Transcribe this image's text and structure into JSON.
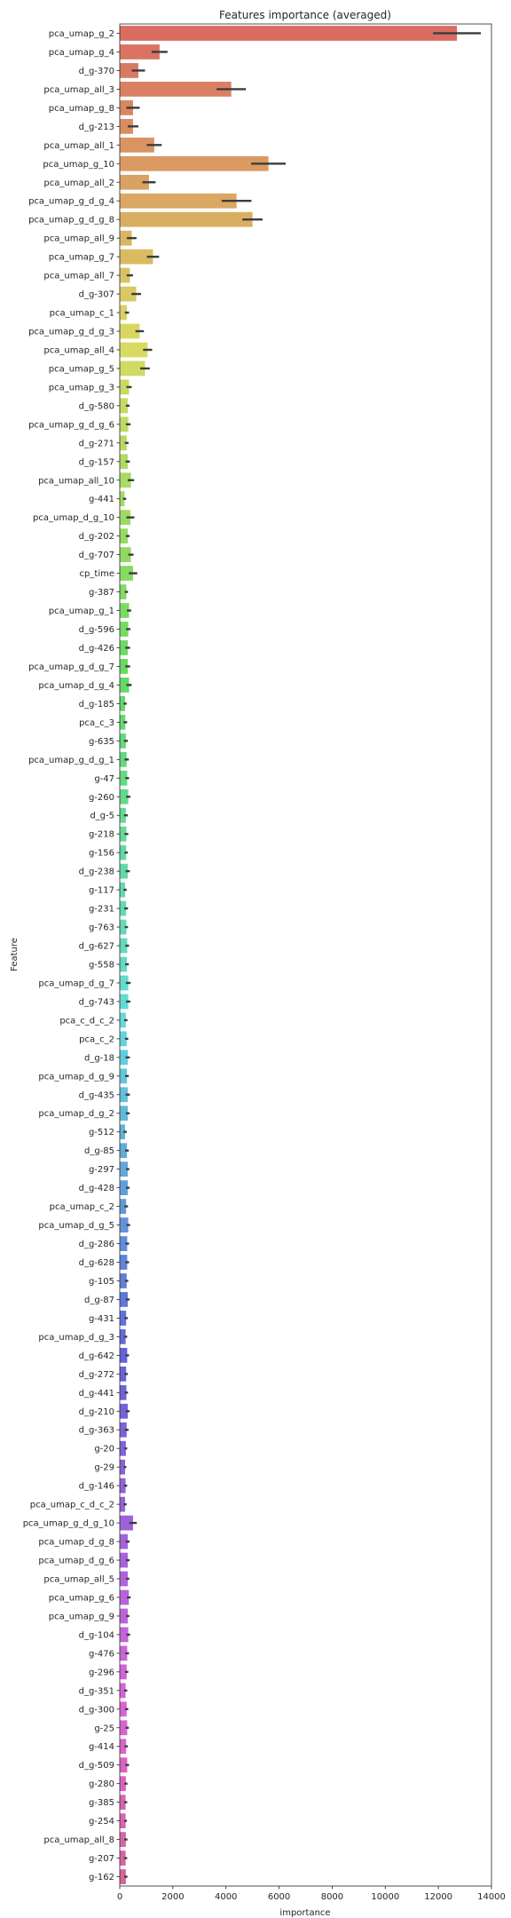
{
  "chart_data": {
    "type": "bar",
    "orientation": "horizontal",
    "title": "Features importance (averaged)",
    "xlabel": "importance",
    "ylabel": "Feature",
    "xlim": [
      0,
      14000
    ],
    "xticks": [
      0,
      2000,
      4000,
      6000,
      8000,
      10000,
      12000,
      14000
    ],
    "grid": false,
    "legend": "none",
    "error_bars": true,
    "palette": "husl",
    "categories": [
      "pca_umap_g_2",
      "pca_umap_g_4",
      "d_g-370",
      "pca_umap_all_3",
      "pca_umap_g_8",
      "d_g-213",
      "pca_umap_all_1",
      "pca_umap_g_10",
      "pca_umap_all_2",
      "pca_umap_g_d_g_4",
      "pca_umap_g_d_g_8",
      "pca_umap_all_9",
      "pca_umap_g_7",
      "pca_umap_all_7",
      "d_g-307",
      "pca_umap_c_1",
      "pca_umap_g_d_g_3",
      "pca_umap_all_4",
      "pca_umap_g_5",
      "pca_umap_g_3",
      "d_g-580",
      "pca_umap_g_d_g_6",
      "d_g-271",
      "d_g-157",
      "pca_umap_all_10",
      "g-441",
      "pca_umap_d_g_10",
      "d_g-202",
      "d_g-707",
      "cp_time",
      "g-387",
      "pca_umap_g_1",
      "d_g-596",
      "d_g-426",
      "pca_umap_g_d_g_7",
      "pca_umap_d_g_4",
      "d_g-185",
      "pca_c_3",
      "g-635",
      "pca_umap_g_d_g_1",
      "g-47",
      "g-260",
      "d_g-5",
      "g-218",
      "g-156",
      "d_g-238",
      "g-117",
      "g-231",
      "g-763",
      "d_g-627",
      "g-558",
      "pca_umap_d_g_7",
      "d_g-743",
      "pca_c_d_c_2",
      "pca_c_2",
      "d_g-18",
      "pca_umap_d_g_9",
      "d_g-435",
      "pca_umap_d_g_2",
      "g-512",
      "d_g-85",
      "g-297",
      "d_g-428",
      "pca_umap_c_2",
      "pca_umap_d_g_5",
      "d_g-286",
      "d_g-628",
      "g-105",
      "d_g-87",
      "g-431",
      "pca_umap_d_g_3",
      "d_g-642",
      "d_g-272",
      "d_g-441",
      "d_g-210",
      "d_g-363",
      "g-20",
      "g-29",
      "d_g-146",
      "pca_umap_c_d_c_2",
      "pca_umap_g_d_g_10",
      "pca_umap_d_g_8",
      "pca_umap_d_g_6",
      "pca_umap_all_5",
      "pca_umap_g_6",
      "pca_umap_g_9",
      "d_g-104",
      "g-476",
      "g-296",
      "d_g-351",
      "d_g-300",
      "g-25",
      "g-414",
      "d_g-509",
      "g-280",
      "g-385",
      "g-254",
      "pca_umap_all_8",
      "g-207",
      "g-162"
    ],
    "values": [
      12700,
      1500,
      700,
      4200,
      500,
      500,
      1300,
      5600,
      1100,
      4400,
      5000,
      450,
      1250,
      380,
      620,
      270,
      750,
      1050,
      950,
      350,
      300,
      320,
      260,
      300,
      420,
      180,
      400,
      300,
      420,
      500,
      250,
      350,
      320,
      300,
      300,
      350,
      200,
      210,
      230,
      260,
      280,
      320,
      230,
      250,
      240,
      300,
      200,
      240,
      250,
      280,
      270,
      320,
      320,
      230,
      260,
      300,
      270,
      300,
      300,
      200,
      270,
      300,
      300,
      240,
      320,
      280,
      280,
      260,
      300,
      240,
      220,
      280,
      240,
      250,
      300,
      260,
      230,
      200,
      220,
      200,
      500,
      300,
      300,
      300,
      340,
      300,
      320,
      280,
      260,
      220,
      260,
      280,
      240,
      280,
      230,
      220,
      220,
      230,
      220,
      230
    ],
    "errors": [
      900,
      300,
      250,
      550,
      250,
      200,
      280,
      650,
      250,
      560,
      380,
      180,
      230,
      120,
      180,
      80,
      160,
      170,
      180,
      100,
      70,
      90,
      70,
      80,
      120,
      60,
      150,
      70,
      100,
      160,
      60,
      80,
      80,
      90,
      90,
      100,
      60,
      70,
      70,
      80,
      70,
      80,
      70,
      70,
      60,
      80,
      60,
      70,
      60,
      70,
      70,
      90,
      80,
      60,
      60,
      80,
      70,
      80,
      70,
      60,
      70,
      60,
      70,
      70,
      70,
      70,
      70,
      60,
      70,
      60,
      60,
      70,
      60,
      60,
      70,
      70,
      50,
      50,
      60,
      60,
      140,
      70,
      70,
      60,
      70,
      60,
      70,
      70,
      60,
      60,
      60,
      60,
      60,
      70,
      60,
      60,
      50,
      60,
      60,
      60
    ]
  }
}
